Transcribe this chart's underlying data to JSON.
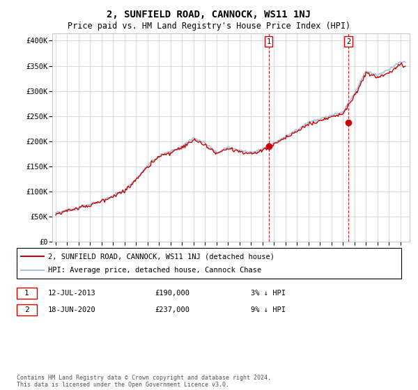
{
  "title": "2, SUNFIELD ROAD, CANNOCK, WS11 1NJ",
  "subtitle": "Price paid vs. HM Land Registry's House Price Index (HPI)",
  "ylabel_ticks": [
    "£0",
    "£50K",
    "£100K",
    "£150K",
    "£200K",
    "£250K",
    "£300K",
    "£350K",
    "£400K"
  ],
  "ytick_values": [
    0,
    50000,
    100000,
    150000,
    200000,
    250000,
    300000,
    350000,
    400000
  ],
  "ylim": [
    0,
    415000
  ],
  "xlim_start": 1994.7,
  "xlim_end": 2025.8,
  "hpi_color": "#aac4e0",
  "price_color": "#cc0000",
  "vline_color": "#cc0000",
  "transaction1_x": 2013.54,
  "transaction1_y": 190000,
  "transaction2_x": 2020.46,
  "transaction2_y": 237000,
  "legend_house_label": "2, SUNFIELD ROAD, CANNOCK, WS11 1NJ (detached house)",
  "legend_hpi_label": "HPI: Average price, detached house, Cannock Chase",
  "note1_label": "1",
  "note1_date": "12-JUL-2013",
  "note1_price": "£190,000",
  "note1_hpi": "3% ↓ HPI",
  "note2_label": "2",
  "note2_date": "18-JUN-2020",
  "note2_price": "£237,000",
  "note2_hpi": "9% ↓ HPI",
  "footer": "Contains HM Land Registry data © Crown copyright and database right 2024.\nThis data is licensed under the Open Government Licence v3.0.",
  "bg_color": "#ffffff",
  "grid_color": "#cccccc"
}
